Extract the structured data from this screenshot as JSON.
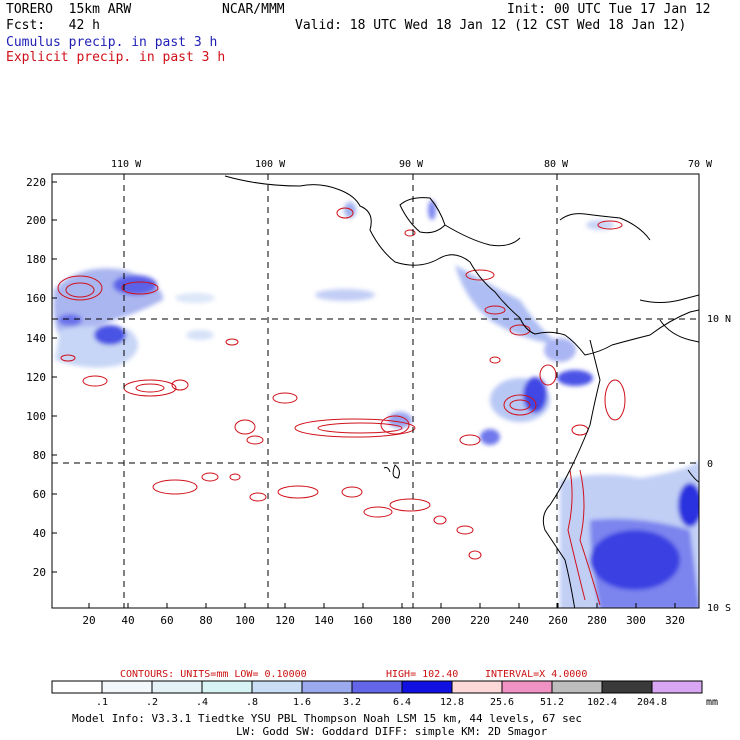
{
  "header": {
    "model": "TORERO  15km ARW",
    "org": "NCAR/MMM",
    "init": "Init: 00 UTC Tue 17 Jan 12",
    "fcst": "Fcst:   42 h",
    "valid": "Valid: 18 UTC Wed 18 Jan 12 (12 CST Wed 18 Jan 12)"
  },
  "legend_lines": {
    "cumulus": "Cumulus precip. in past 3 h",
    "explicit": "Explicit precip. in past 3 h"
  },
  "map": {
    "top_lon_labels": [
      "110 W",
      "100 W",
      "90 W",
      "80 W",
      "70 W"
    ],
    "right_lat_labels": [
      "10 N",
      "0",
      "10 S"
    ],
    "left_ticks": [
      "220",
      "200",
      "180",
      "160",
      "140",
      "120",
      "100",
      "80",
      "60",
      "40",
      "20"
    ],
    "bottom_ticks": [
      "20",
      "40",
      "60",
      "80",
      "100",
      "120",
      "140",
      "160",
      "180",
      "200",
      "220",
      "240",
      "260",
      "280",
      "300",
      "320"
    ]
  },
  "contours_info": {
    "label": "CONTOURS:  UNITS=mm  LOW= 0.10000",
    "high": "HIGH=  102.40",
    "interval": "INTERVAL=X  4.0000"
  },
  "colorbar": {
    "labels": [
      ".1",
      ".2",
      ".4",
      ".8",
      "1.6",
      "3.2",
      "6.4",
      "12.8",
      "25.6",
      "51.2",
      "102.4",
      "204.8"
    ],
    "unit": "mm",
    "colors": [
      "#ffffff",
      "#f2f7fc",
      "#e4f2f8",
      "#d7f3f3",
      "#c9def4",
      "#9ba9ee",
      "#6366e9",
      "#1010e0",
      "#fcd8d8",
      "#f093c4",
      "#bdbdbd",
      "#3a3a3a",
      "#d9a6f4"
    ]
  },
  "footer": {
    "line1": "Model Info: V3.3.1    Tiedtke YSU PBL  Thompson     Noah LSM  15 km,    44 levels,    67 sec",
    "line2": "LW: Godd SW: Goddard DIFF: simple KM: 2D Smagor"
  }
}
